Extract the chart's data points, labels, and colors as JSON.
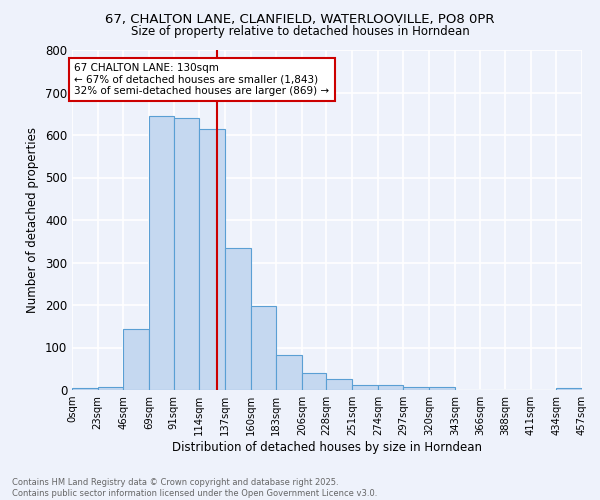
{
  "title_line1": "67, CHALTON LANE, CLANFIELD, WATERLOOVILLE, PO8 0PR",
  "title_line2": "Size of property relative to detached houses in Horndean",
  "xlabel": "Distribution of detached houses by size in Horndean",
  "ylabel": "Number of detached properties",
  "bar_edges": [
    0,
    23,
    46,
    69,
    91,
    114,
    137,
    160,
    183,
    206,
    228,
    251,
    274,
    297,
    320,
    343,
    366,
    388,
    411,
    434,
    457
  ],
  "bar_heights": [
    5,
    8,
    143,
    645,
    640,
    615,
    335,
    198,
    82,
    40,
    27,
    12,
    12,
    8,
    8,
    0,
    0,
    0,
    0,
    5
  ],
  "bar_color": "#c5d8f0",
  "bar_edge_color": "#5a9fd4",
  "vline_x": 130,
  "vline_color": "#cc0000",
  "annotation_text": "67 CHALTON LANE: 130sqm\n← 67% of detached houses are smaller (1,843)\n32% of semi-detached houses are larger (869) →",
  "annotation_box_color": "#ffffff",
  "annotation_box_edge": "#cc0000",
  "ylim": [
    0,
    800
  ],
  "yticks": [
    0,
    100,
    200,
    300,
    400,
    500,
    600,
    700,
    800
  ],
  "bg_color": "#eef2fb",
  "grid_color": "#ffffff",
  "footer_text": "Contains HM Land Registry data © Crown copyright and database right 2025.\nContains public sector information licensed under the Open Government Licence v3.0.",
  "tick_labels": [
    "0sqm",
    "23sqm",
    "46sqm",
    "69sqm",
    "91sqm",
    "114sqm",
    "137sqm",
    "160sqm",
    "183sqm",
    "206sqm",
    "228sqm",
    "251sqm",
    "274sqm",
    "297sqm",
    "320sqm",
    "343sqm",
    "366sqm",
    "388sqm",
    "411sqm",
    "434sqm",
    "457sqm"
  ]
}
